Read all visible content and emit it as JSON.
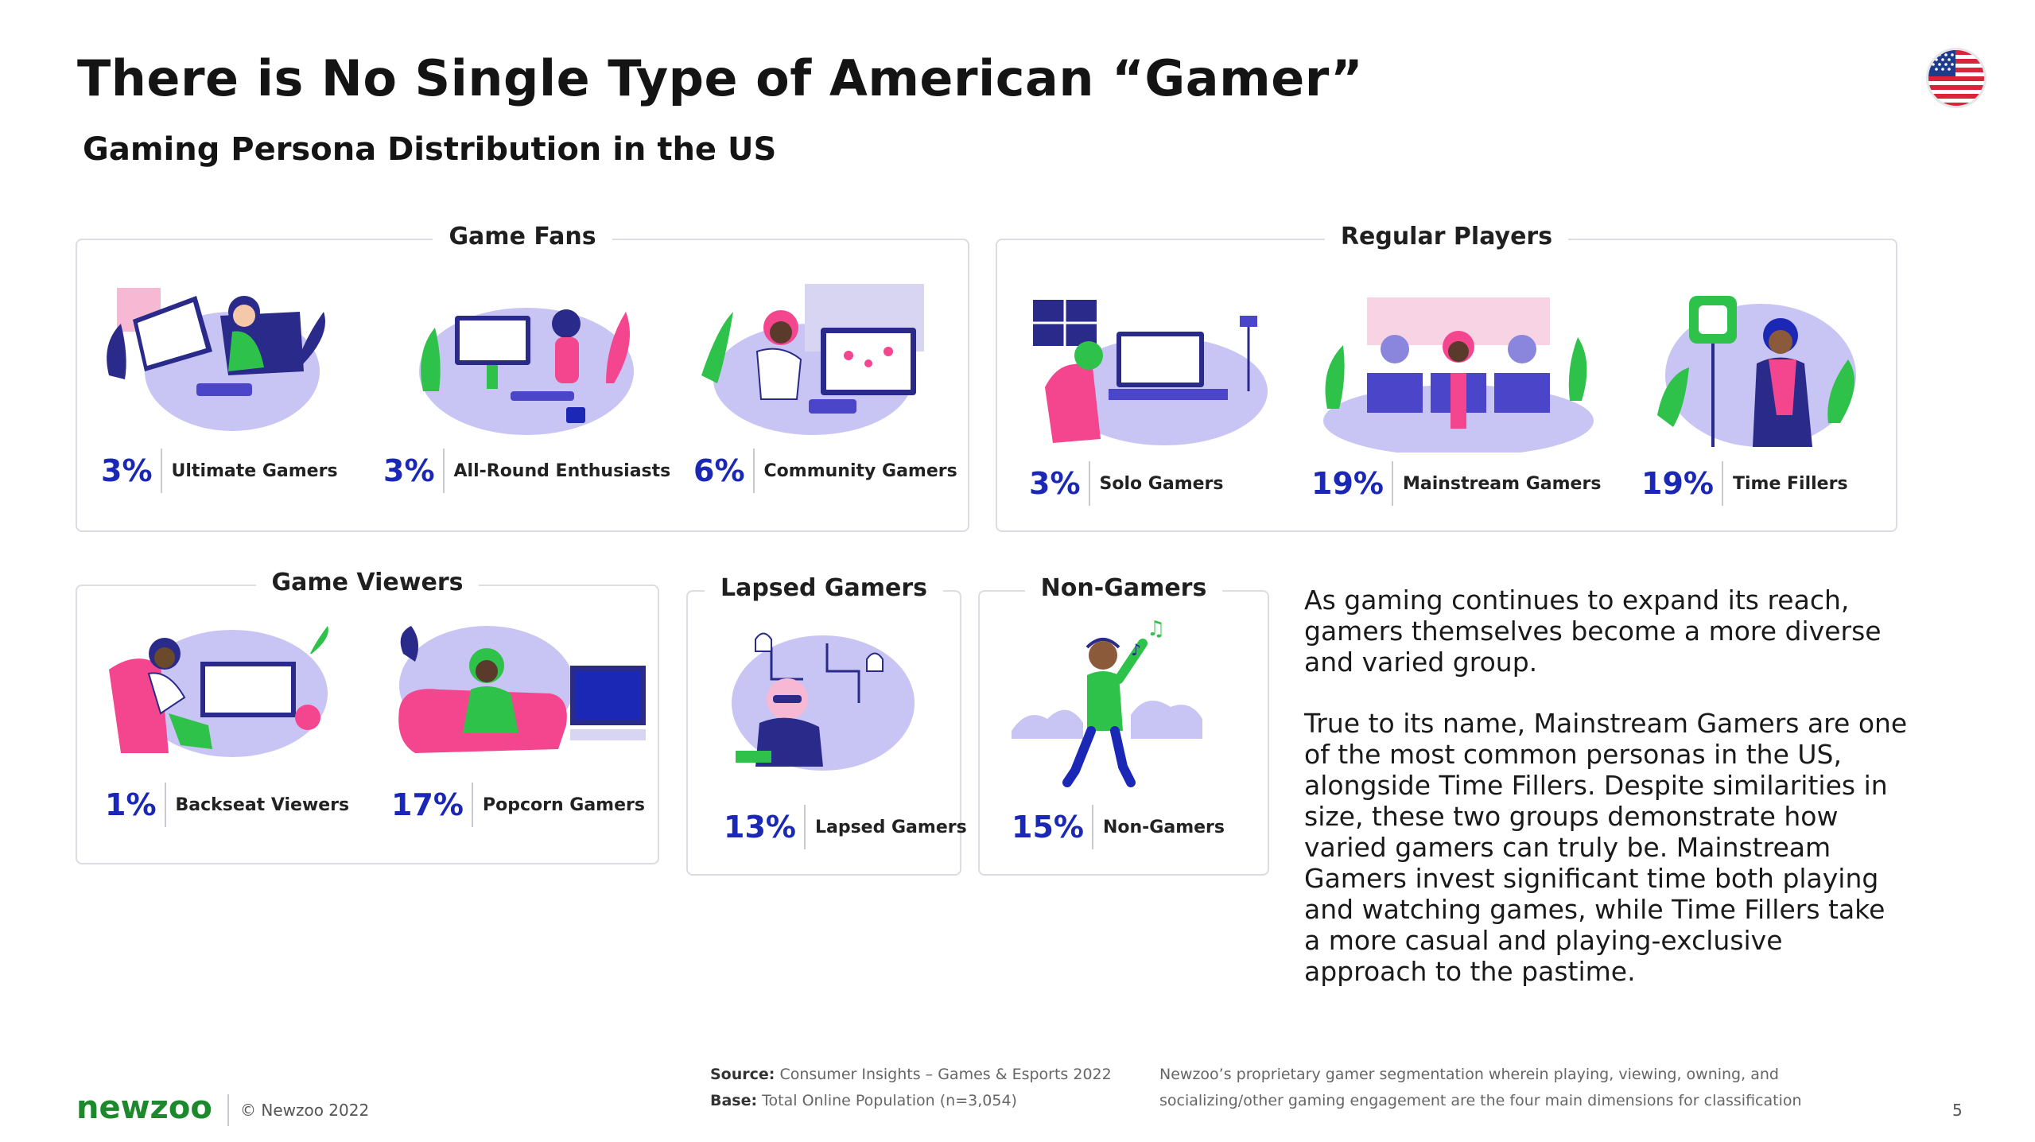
{
  "title": "There is No Single Type of American “Gamer”",
  "subtitle": "Gaming Persona Distribution in the US",
  "flag_icon": "us-flag-icon",
  "colors": {
    "accent_blue": "#1b28b5",
    "lavender": "#c8c4f4",
    "pink": "#f4468f",
    "green": "#2ec24a",
    "brand_green": "#1c8a2c"
  },
  "groups": {
    "game_fans": {
      "title": "Game Fans",
      "personas": [
        {
          "pct": "3%",
          "name": "Ultimate Gamers"
        },
        {
          "pct": "3%",
          "name": "All-Round Enthusiasts"
        },
        {
          "pct": "6%",
          "name": "Community Gamers"
        }
      ]
    },
    "regular_players": {
      "title": "Regular Players",
      "personas": [
        {
          "pct": "3%",
          "name": "Solo Gamers"
        },
        {
          "pct": "19%",
          "name": "Mainstream Gamers"
        },
        {
          "pct": "19%",
          "name": "Time Fillers"
        }
      ]
    },
    "game_viewers": {
      "title": "Game Viewers",
      "personas": [
        {
          "pct": "1%",
          "name": "Backseat Viewers"
        },
        {
          "pct": "17%",
          "name": "Popcorn Gamers"
        }
      ]
    },
    "lapsed_gamers": {
      "title": "Lapsed Gamers",
      "personas": [
        {
          "pct": "13%",
          "name": "Lapsed Gamers"
        }
      ]
    },
    "non_gamers": {
      "title": "Non-Gamers",
      "personas": [
        {
          "pct": "15%",
          "name": "Non-Gamers"
        }
      ]
    }
  },
  "body": {
    "paragraph_1": "As gaming continues to expand its reach, gamers themselves become a more diverse and varied group.",
    "paragraph_2": "True to its name, Mainstream Gamers are one of the most common personas in the US, alongside Time Fillers. Despite similarities in size, these two groups demonstrate how varied gamers can truly be. Mainstream Gamers invest significant time both playing and watching games, while Time Fillers take a more casual and playing-exclusive approach to the pastime."
  },
  "footer": {
    "logo": "newzoo",
    "copyright": "© Newzoo 2022",
    "source_label": "Source:",
    "source_text": "Consumer Insights – Games & Esports 2022",
    "base_label": "Base:",
    "base_text": "Total Online Population (n=3,054)",
    "note_line_1": "Newzoo’s proprietary gamer segmentation wherein playing, viewing, owning, and",
    "note_line_2": "socializing/other gaming engagement are the four main dimensions for classification",
    "page_number": "5"
  }
}
